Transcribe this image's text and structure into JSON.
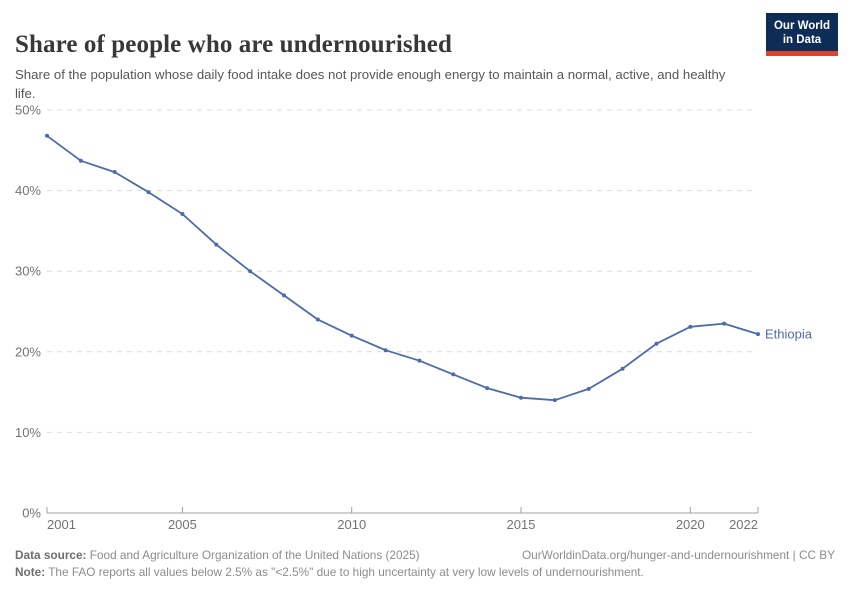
{
  "header": {
    "title": "Share of people who are undernourished",
    "subtitle": "Share of the population whose daily food intake does not provide enough energy to maintain a normal, active, and healthy life.",
    "logo": {
      "line1": "Our World",
      "line2": "in Data"
    }
  },
  "chart_data": {
    "type": "line",
    "title": "Share of people who are undernourished",
    "x": [
      2001,
      2002,
      2003,
      2004,
      2005,
      2006,
      2007,
      2008,
      2009,
      2010,
      2011,
      2012,
      2013,
      2014,
      2015,
      2016,
      2017,
      2018,
      2019,
      2020,
      2021,
      2022
    ],
    "series": [
      {
        "name": "Ethiopia",
        "color": "#4c6bac",
        "values": [
          46.8,
          43.7,
          42.3,
          39.8,
          37.1,
          33.3,
          30.0,
          27.0,
          24.0,
          22.0,
          20.2,
          18.9,
          17.2,
          15.5,
          14.3,
          14.0,
          15.4,
          17.9,
          21.0,
          23.1,
          23.5,
          22.2
        ]
      }
    ],
    "xlabel": "",
    "ylabel": "",
    "ylim": [
      0,
      50
    ],
    "yticks": [
      0,
      10,
      20,
      30,
      40,
      50
    ],
    "ytick_suffix": "%",
    "xticks": [
      2001,
      2005,
      2010,
      2015,
      2020,
      2022
    ],
    "grid": "horizontal-dashed",
    "legend": "line-end-label"
  },
  "colors": {
    "accent": "#4c6bac",
    "grid": "#dcdcdc",
    "axis": "#a0a0a0",
    "tick_text": "#737373",
    "logo_bg": "#0d2d57",
    "logo_strip": "#e0422e"
  },
  "footer": {
    "datasource_label": "Data source:",
    "datasource_text": " Food and Agriculture Organization of the United Nations (2025)",
    "link_text": "OurWorldinData.org/hunger-and-undernourishment | CC BY",
    "note_label": "Note:",
    "note_text": " The FAO reports all values below 2.5% as \"<2.5%\" due to high uncertainty at very low levels of undernourishment."
  }
}
